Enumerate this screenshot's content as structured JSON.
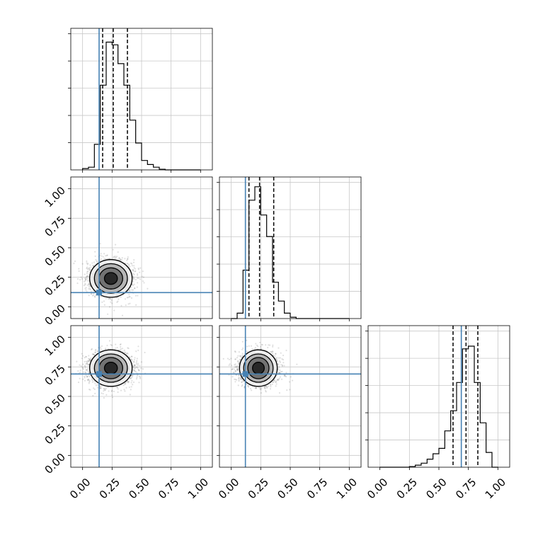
{
  "chart_data": {
    "type": "corner",
    "grid": true,
    "truths": [
      0.14,
      0.12,
      0.69
    ],
    "quantiles": [
      [
        0.17,
        0.26,
        0.38
      ],
      [
        0.15,
        0.24,
        0.36
      ],
      [
        0.62,
        0.73,
        0.83
      ]
    ],
    "axis_range": [
      -0.1,
      1.1
    ],
    "ticks": [
      0.0,
      0.25,
      0.5,
      0.75,
      1.0
    ],
    "tick_labels": [
      "0.00",
      "0.25",
      "0.50",
      "0.75",
      "1.00"
    ],
    "histograms": [
      {
        "bin_edges": [
          0.0,
          0.05,
          0.1,
          0.15,
          0.2,
          0.25,
          0.3,
          0.35,
          0.4,
          0.45,
          0.5,
          0.55,
          0.6,
          0.65,
          0.7,
          0.75,
          0.8,
          0.85,
          0.9,
          0.95,
          1.0
        ],
        "counts": [
          0.01,
          0.02,
          0.19,
          0.63,
          0.95,
          0.93,
          0.79,
          0.63,
          0.37,
          0.2,
          0.07,
          0.04,
          0.02,
          0.005,
          0.0,
          0.0,
          0.0,
          0.0,
          0.0,
          0.0
        ]
      },
      {
        "bin_edges": [
          0.0,
          0.05,
          0.1,
          0.15,
          0.2,
          0.25,
          0.3,
          0.35,
          0.4,
          0.45,
          0.5,
          0.55,
          0.6,
          0.65,
          0.7,
          0.75,
          0.8,
          0.85,
          0.9,
          0.95,
          1.0
        ],
        "counts": [
          0.0,
          0.04,
          0.36,
          0.88,
          0.98,
          0.77,
          0.61,
          0.27,
          0.13,
          0.04,
          0.01,
          0.0,
          0.0,
          0.0,
          0.0,
          0.0,
          0.0,
          0.0,
          0.0,
          0.0
        ]
      },
      {
        "bin_edges": [
          0.0,
          0.05,
          0.1,
          0.15,
          0.2,
          0.25,
          0.3,
          0.35,
          0.4,
          0.45,
          0.5,
          0.55,
          0.6,
          0.65,
          0.7,
          0.75,
          0.8,
          0.85,
          0.9,
          0.95,
          1.0
        ],
        "counts": [
          0.0,
          0.0,
          0.0,
          0.0,
          0.0,
          0.005,
          0.015,
          0.03,
          0.06,
          0.1,
          0.14,
          0.27,
          0.42,
          0.63,
          0.88,
          0.9,
          0.63,
          0.33,
          0.11,
          0.0
        ]
      }
    ],
    "pairs": [
      {
        "row": 1,
        "col": 0,
        "center": [
          0.24,
          0.24
        ],
        "spread": [
          0.085,
          0.075
        ],
        "n_points": 2200,
        "contours": [
          {
            "rx": 0.055,
            "ry": 0.05
          },
          {
            "rx": 0.1,
            "ry": 0.09
          },
          {
            "rx": 0.14,
            "ry": 0.125
          },
          {
            "rx": 0.18,
            "ry": 0.16
          }
        ]
      },
      {
        "row": 2,
        "col": 0,
        "center": [
          0.24,
          0.74
        ],
        "spread": [
          0.085,
          0.07
        ],
        "n_points": 2200,
        "contours": [
          {
            "rx": 0.055,
            "ry": 0.05
          },
          {
            "rx": 0.1,
            "ry": 0.09
          },
          {
            "rx": 0.14,
            "ry": 0.12
          },
          {
            "rx": 0.18,
            "ry": 0.155
          }
        ]
      },
      {
        "row": 2,
        "col": 1,
        "center": [
          0.23,
          0.74
        ],
        "spread": [
          0.075,
          0.07
        ],
        "n_points": 2200,
        "contours": [
          {
            "rx": 0.05,
            "ry": 0.05
          },
          {
            "rx": 0.09,
            "ry": 0.09
          },
          {
            "rx": 0.125,
            "ry": 0.12
          },
          {
            "rx": 0.16,
            "ry": 0.155
          }
        ]
      }
    ],
    "colors": {
      "truth": "#4682b4",
      "hist": "#000000",
      "quantile": "#000000",
      "grid": "#c8c8c8",
      "points": "#000000"
    }
  }
}
